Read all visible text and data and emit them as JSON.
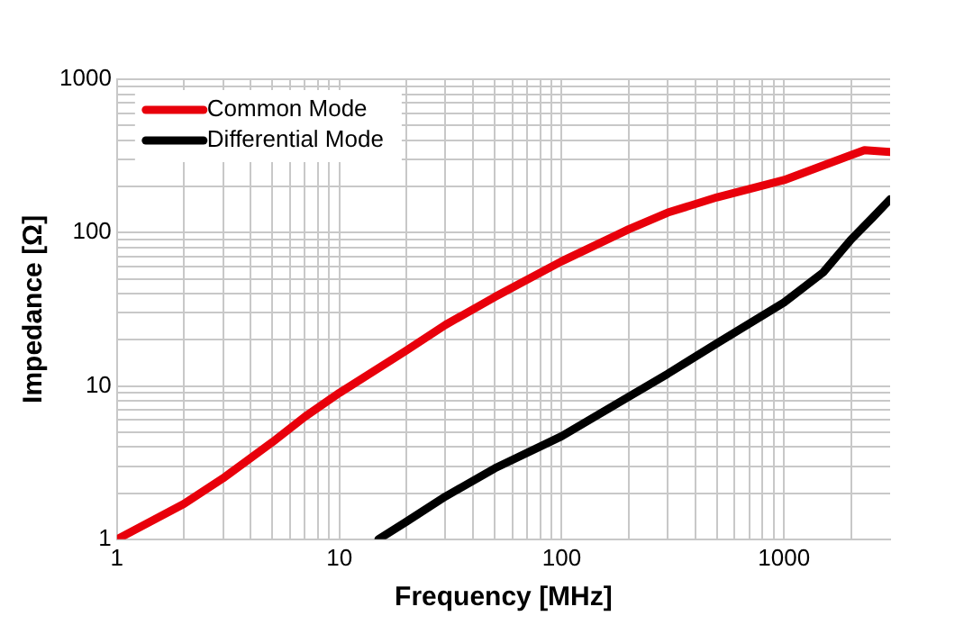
{
  "chart_data": {
    "type": "line",
    "xlabel": "Frequency [MHz]",
    "ylabel": "Impedance [Ω]",
    "log": "xy",
    "grid": true,
    "legend": "top left",
    "marker": "none",
    "line_style": "solid",
    "xlim": [
      1,
      3000
    ],
    "ylim": [
      1,
      1000
    ],
    "xticks": [
      1,
      {
        "value": 2,
        "label": null
      },
      {
        "value": 3,
        "label": null
      },
      {
        "value": 4,
        "label": null
      },
      {
        "value": 5,
        "label": null
      },
      {
        "value": 6,
        "label": null
      },
      {
        "value": 7,
        "label": null
      },
      {
        "value": 8,
        "label": null
      },
      {
        "value": 9,
        "label": null
      },
      10,
      {
        "value": 20,
        "label": null
      },
      {
        "value": 30,
        "label": null
      },
      {
        "value": 40,
        "label": null
      },
      {
        "value": 50,
        "label": null
      },
      {
        "value": 60,
        "label": null
      },
      {
        "value": 70,
        "label": null
      },
      {
        "value": 80,
        "label": null
      },
      {
        "value": 90,
        "label": null
      },
      100,
      {
        "value": 200,
        "label": null
      },
      {
        "value": 300,
        "label": null
      },
      {
        "value": 400,
        "label": null
      },
      {
        "value": 500,
        "label": null
      },
      {
        "value": 600,
        "label": null
      },
      {
        "value": 700,
        "label": null
      },
      {
        "value": 800,
        "label": null
      },
      {
        "value": 900,
        "label": null
      },
      1000,
      {
        "value": 2000,
        "label": null
      }
    ],
    "yticks": [
      1,
      {
        "value": 2,
        "label": null
      },
      {
        "value": 3,
        "label": null
      },
      {
        "value": 4,
        "label": null
      },
      {
        "value": 5,
        "label": null
      },
      {
        "value": 6,
        "label": null
      },
      {
        "value": 7,
        "label": null
      },
      {
        "value": 8,
        "label": null
      },
      {
        "value": 9,
        "label": null
      },
      10,
      {
        "value": 20,
        "label": null
      },
      {
        "value": 30,
        "label": null
      },
      {
        "value": 40,
        "label": null
      },
      {
        "value": 50,
        "label": null
      },
      {
        "value": 60,
        "label": null
      },
      {
        "value": 70,
        "label": null
      },
      {
        "value": 80,
        "label": null
      },
      {
        "value": 90,
        "label": null
      },
      100,
      {
        "value": 200,
        "label": null
      },
      {
        "value": 300,
        "label": null
      },
      {
        "value": 400,
        "label": null
      },
      {
        "value": 500,
        "label": null
      },
      {
        "value": 600,
        "label": null
      },
      {
        "value": 700,
        "label": null
      },
      {
        "value": 800,
        "label": null
      },
      {
        "value": 900,
        "label": null
      },
      1000
    ],
    "series": [
      {
        "name": "Common Mode",
        "color": "#e8000b",
        "x": [
          1,
          2,
          3,
          5,
          7,
          10,
          20,
          30,
          50,
          100,
          200,
          300,
          500,
          1000,
          2000,
          2300,
          3000
        ],
        "values": [
          1,
          1.7,
          2.5,
          4.3,
          6.3,
          9,
          17,
          25,
          38,
          65,
          105,
          135,
          170,
          220,
          320,
          345,
          335
        ]
      },
      {
        "name": "Differential Mode",
        "color": "#000000",
        "x": [
          15,
          20,
          30,
          50,
          100,
          200,
          300,
          500,
          1000,
          1500,
          2000,
          2500,
          3000
        ],
        "values": [
          1,
          1.3,
          1.9,
          2.9,
          4.7,
          8.5,
          12,
          19,
          35,
          55,
          90,
          125,
          165
        ]
      }
    ]
  }
}
